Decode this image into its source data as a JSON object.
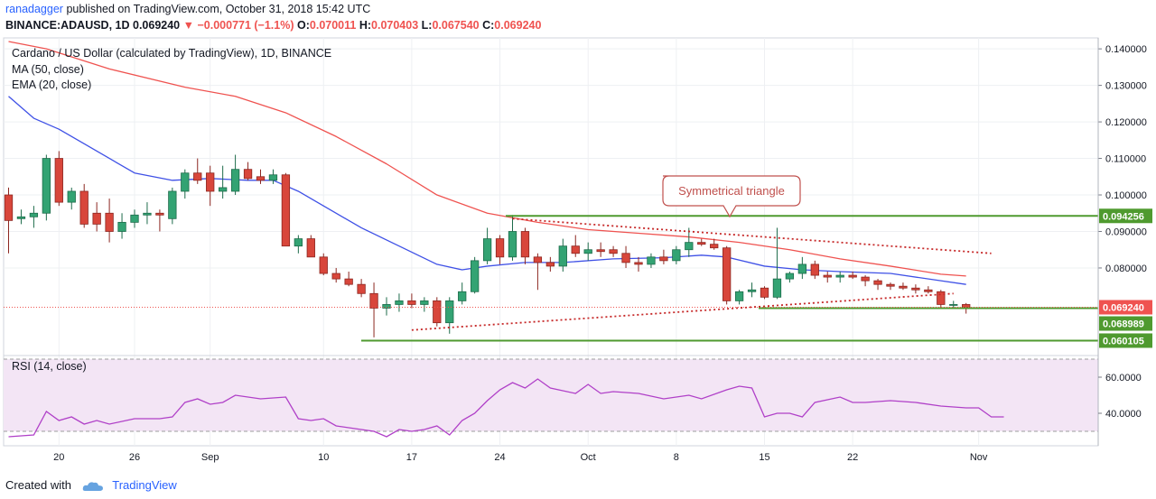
{
  "header": {
    "author": "ranadagger",
    "published": "published on TradingView.com, October 31, 2018 15:42 UTC",
    "symbol": "BINANCE:ADAUSD, 1D",
    "last": "0.069240",
    "arrow": "▼",
    "change": "−0.000771 (−1.1%)",
    "o_label": "O:",
    "o": "0.070011",
    "h_label": "H:",
    "h": "0.070403",
    "l_label": "L:",
    "l": "0.067540",
    "c_label": "C:",
    "c": "0.069240"
  },
  "legend": {
    "title": "Cardano / US Dollar (calculated by TradingView), 1D, BINANCE",
    "ma": "MA (50, close)",
    "ema": "EMA (20, close)",
    "rsi": "RSI (14, close)"
  },
  "annotation": {
    "text": "Symmetrical triangle"
  },
  "footer": {
    "created": "Created with",
    "brand": "TradingView"
  },
  "colors": {
    "up": "#26a69a",
    "down": "#ef5350",
    "ma": "#ef5350",
    "ema": "#3f51e6",
    "rsi_line": "#b040c8",
    "rsi_fill": "#f3e5f5",
    "level": "#4f9a2f",
    "grid": "#eef0f3",
    "price_tag": "#ef5350"
  },
  "chart_data": {
    "type": "candlestick",
    "price_axis": {
      "min": 0.058,
      "max": 0.143,
      "ticks": [
        0.14,
        0.13,
        0.12,
        0.11,
        0.1,
        0.09,
        0.08
      ],
      "tick_labels": [
        "0.140000",
        "0.130000",
        "0.120000",
        "0.110000",
        "0.100000",
        "0.090000",
        "0.080000"
      ]
    },
    "x_axis": {
      "first_day": 0,
      "labels": [
        {
          "day": 4,
          "text": "20"
        },
        {
          "day": 10,
          "text": "26"
        },
        {
          "day": 16,
          "text": "Sep"
        },
        {
          "day": 25,
          "text": "10"
        },
        {
          "day": 32,
          "text": "17"
        },
        {
          "day": 39,
          "text": "24"
        },
        {
          "day": 46,
          "text": "Oct"
        },
        {
          "day": 53,
          "text": "8"
        },
        {
          "day": 60,
          "text": "15"
        },
        {
          "day": 67,
          "text": "22"
        },
        {
          "day": 77,
          "text": "Nov"
        }
      ]
    },
    "candles": [
      {
        "o": 0.1,
        "h": 0.102,
        "l": 0.084,
        "c": 0.093
      },
      {
        "o": 0.0935,
        "h": 0.096,
        "l": 0.092,
        "c": 0.094
      },
      {
        "o": 0.094,
        "h": 0.097,
        "l": 0.091,
        "c": 0.095
      },
      {
        "o": 0.095,
        "h": 0.111,
        "l": 0.093,
        "c": 0.11
      },
      {
        "o": 0.11,
        "h": 0.112,
        "l": 0.097,
        "c": 0.098
      },
      {
        "o": 0.098,
        "h": 0.102,
        "l": 0.096,
        "c": 0.101
      },
      {
        "o": 0.101,
        "h": 0.103,
        "l": 0.091,
        "c": 0.092
      },
      {
        "o": 0.095,
        "h": 0.098,
        "l": 0.09,
        "c": 0.092
      },
      {
        "o": 0.095,
        "h": 0.099,
        "l": 0.087,
        "c": 0.09
      },
      {
        "o": 0.09,
        "h": 0.095,
        "l": 0.088,
        "c": 0.0925
      },
      {
        "o": 0.0925,
        "h": 0.096,
        "l": 0.091,
        "c": 0.0945
      },
      {
        "o": 0.0945,
        "h": 0.098,
        "l": 0.092,
        "c": 0.095
      },
      {
        "o": 0.095,
        "h": 0.096,
        "l": 0.09,
        "c": 0.0945
      },
      {
        "o": 0.0935,
        "h": 0.102,
        "l": 0.092,
        "c": 0.101
      },
      {
        "o": 0.101,
        "h": 0.107,
        "l": 0.099,
        "c": 0.106
      },
      {
        "o": 0.106,
        "h": 0.11,
        "l": 0.103,
        "c": 0.104
      },
      {
        "o": 0.106,
        "h": 0.108,
        "l": 0.097,
        "c": 0.101
      },
      {
        "o": 0.101,
        "h": 0.108,
        "l": 0.099,
        "c": 0.102
      },
      {
        "o": 0.101,
        "h": 0.111,
        "l": 0.1,
        "c": 0.107
      },
      {
        "o": 0.107,
        "h": 0.109,
        "l": 0.104,
        "c": 0.1045
      },
      {
        "o": 0.105,
        "h": 0.107,
        "l": 0.103,
        "c": 0.104
      },
      {
        "o": 0.104,
        "h": 0.107,
        "l": 0.103,
        "c": 0.1055
      },
      {
        "o": 0.1055,
        "h": 0.106,
        "l": 0.086,
        "c": 0.086
      },
      {
        "o": 0.086,
        "h": 0.089,
        "l": 0.084,
        "c": 0.088
      },
      {
        "o": 0.088,
        "h": 0.089,
        "l": 0.083,
        "c": 0.083
      },
      {
        "o": 0.083,
        "h": 0.084,
        "l": 0.078,
        "c": 0.0785
      },
      {
        "o": 0.0785,
        "h": 0.08,
        "l": 0.076,
        "c": 0.077
      },
      {
        "o": 0.077,
        "h": 0.079,
        "l": 0.075,
        "c": 0.0755
      },
      {
        "o": 0.0755,
        "h": 0.077,
        "l": 0.072,
        "c": 0.073
      },
      {
        "o": 0.073,
        "h": 0.076,
        "l": 0.061,
        "c": 0.069
      },
      {
        "o": 0.069,
        "h": 0.072,
        "l": 0.067,
        "c": 0.07
      },
      {
        "o": 0.07,
        "h": 0.073,
        "l": 0.068,
        "c": 0.071
      },
      {
        "o": 0.071,
        "h": 0.073,
        "l": 0.069,
        "c": 0.07
      },
      {
        "o": 0.07,
        "h": 0.072,
        "l": 0.068,
        "c": 0.071
      },
      {
        "o": 0.071,
        "h": 0.072,
        "l": 0.064,
        "c": 0.065
      },
      {
        "o": 0.065,
        "h": 0.072,
        "l": 0.062,
        "c": 0.071
      },
      {
        "o": 0.071,
        "h": 0.076,
        "l": 0.07,
        "c": 0.0735
      },
      {
        "o": 0.0735,
        "h": 0.083,
        "l": 0.073,
        "c": 0.082
      },
      {
        "o": 0.082,
        "h": 0.091,
        "l": 0.081,
        "c": 0.088
      },
      {
        "o": 0.088,
        "h": 0.089,
        "l": 0.081,
        "c": 0.083
      },
      {
        "o": 0.083,
        "h": 0.0945,
        "l": 0.082,
        "c": 0.09
      },
      {
        "o": 0.09,
        "h": 0.091,
        "l": 0.081,
        "c": 0.083
      },
      {
        "o": 0.083,
        "h": 0.084,
        "l": 0.074,
        "c": 0.0815
      },
      {
        "o": 0.0815,
        "h": 0.083,
        "l": 0.079,
        "c": 0.0805
      },
      {
        "o": 0.0805,
        "h": 0.088,
        "l": 0.079,
        "c": 0.086
      },
      {
        "o": 0.086,
        "h": 0.089,
        "l": 0.083,
        "c": 0.084
      },
      {
        "o": 0.084,
        "h": 0.087,
        "l": 0.082,
        "c": 0.085
      },
      {
        "o": 0.085,
        "h": 0.087,
        "l": 0.083,
        "c": 0.0845
      },
      {
        "o": 0.085,
        "h": 0.086,
        "l": 0.083,
        "c": 0.084
      },
      {
        "o": 0.084,
        "h": 0.086,
        "l": 0.08,
        "c": 0.0815
      },
      {
        "o": 0.0815,
        "h": 0.083,
        "l": 0.079,
        "c": 0.081
      },
      {
        "o": 0.081,
        "h": 0.084,
        "l": 0.08,
        "c": 0.083
      },
      {
        "o": 0.083,
        "h": 0.085,
        "l": 0.081,
        "c": 0.082
      },
      {
        "o": 0.082,
        "h": 0.086,
        "l": 0.081,
        "c": 0.085
      },
      {
        "o": 0.085,
        "h": 0.091,
        "l": 0.083,
        "c": 0.087
      },
      {
        "o": 0.087,
        "h": 0.088,
        "l": 0.086,
        "c": 0.0865
      },
      {
        "o": 0.0865,
        "h": 0.088,
        "l": 0.085,
        "c": 0.0855
      },
      {
        "o": 0.0855,
        "h": 0.086,
        "l": 0.07,
        "c": 0.071
      },
      {
        "o": 0.071,
        "h": 0.074,
        "l": 0.07,
        "c": 0.0735
      },
      {
        "o": 0.0735,
        "h": 0.076,
        "l": 0.072,
        "c": 0.074
      },
      {
        "o": 0.0745,
        "h": 0.075,
        "l": 0.0715,
        "c": 0.072
      },
      {
        "o": 0.072,
        "h": 0.091,
        "l": 0.0715,
        "c": 0.077
      },
      {
        "o": 0.077,
        "h": 0.079,
        "l": 0.076,
        "c": 0.0785
      },
      {
        "o": 0.0785,
        "h": 0.083,
        "l": 0.077,
        "c": 0.081
      },
      {
        "o": 0.081,
        "h": 0.082,
        "l": 0.077,
        "c": 0.078
      },
      {
        "o": 0.078,
        "h": 0.079,
        "l": 0.076,
        "c": 0.0775
      },
      {
        "o": 0.0775,
        "h": 0.079,
        "l": 0.076,
        "c": 0.078
      },
      {
        "o": 0.078,
        "h": 0.079,
        "l": 0.077,
        "c": 0.0775
      },
      {
        "o": 0.0775,
        "h": 0.078,
        "l": 0.075,
        "c": 0.0765
      },
      {
        "o": 0.0765,
        "h": 0.077,
        "l": 0.074,
        "c": 0.0755
      },
      {
        "o": 0.0755,
        "h": 0.076,
        "l": 0.074,
        "c": 0.075
      },
      {
        "o": 0.075,
        "h": 0.076,
        "l": 0.074,
        "c": 0.0745
      },
      {
        "o": 0.0745,
        "h": 0.0755,
        "l": 0.073,
        "c": 0.074
      },
      {
        "o": 0.074,
        "h": 0.075,
        "l": 0.073,
        "c": 0.0735
      },
      {
        "o": 0.0735,
        "h": 0.074,
        "l": 0.069,
        "c": 0.07
      },
      {
        "o": 0.07,
        "h": 0.071,
        "l": 0.069,
        "c": 0.07
      },
      {
        "o": 0.07,
        "h": 0.0704,
        "l": 0.0675,
        "c": 0.0692
      }
    ],
    "ma50": [
      [
        0,
        0.142
      ],
      [
        3,
        0.14
      ],
      [
        8,
        0.1345
      ],
      [
        14,
        0.1295
      ],
      [
        18,
        0.127
      ],
      [
        22,
        0.1225
      ],
      [
        26,
        0.116
      ],
      [
        30,
        0.1085
      ],
      [
        34,
        0.1
      ],
      [
        38,
        0.095
      ],
      [
        42,
        0.0925
      ],
      [
        46,
        0.0905
      ],
      [
        50,
        0.0895
      ],
      [
        54,
        0.0885
      ],
      [
        58,
        0.087
      ],
      [
        62,
        0.085
      ],
      [
        66,
        0.0825
      ],
      [
        70,
        0.0805
      ],
      [
        74,
        0.0783
      ],
      [
        76,
        0.0778
      ]
    ],
    "ema20": [
      [
        0,
        0.127
      ],
      [
        2,
        0.121
      ],
      [
        4,
        0.118
      ],
      [
        6,
        0.114
      ],
      [
        10,
        0.106
      ],
      [
        13,
        0.104
      ],
      [
        16,
        0.1045
      ],
      [
        19,
        0.104
      ],
      [
        21,
        0.104
      ],
      [
        23,
        0.101
      ],
      [
        25,
        0.097
      ],
      [
        28,
        0.091
      ],
      [
        31,
        0.086
      ],
      [
        34,
        0.081
      ],
      [
        36,
        0.0795
      ],
      [
        38,
        0.0805
      ],
      [
        41,
        0.0815
      ],
      [
        44,
        0.0815
      ],
      [
        48,
        0.0825
      ],
      [
        52,
        0.0828
      ],
      [
        55,
        0.0835
      ],
      [
        57,
        0.083
      ],
      [
        60,
        0.0805
      ],
      [
        63,
        0.0795
      ],
      [
        66,
        0.079
      ],
      [
        70,
        0.0785
      ],
      [
        74,
        0.0765
      ],
      [
        76,
        0.0755
      ]
    ],
    "annotations": {
      "resistance_level": 0.094256,
      "support_level": 0.060105,
      "current_price": 0.06924,
      "secondary_level": 0.068989,
      "triangle_upper": [
        [
          40,
          0.0935
        ],
        [
          78,
          0.084
        ]
      ],
      "triangle_lower": [
        [
          32,
          0.063
        ],
        [
          75,
          0.073
        ]
      ]
    },
    "rsi": {
      "min": 22,
      "max": 72,
      "ticks": [
        60,
        40
      ],
      "tick_labels": [
        "60.0000",
        "40.0000"
      ],
      "band": [
        70,
        30
      ],
      "values": [
        [
          0,
          27
        ],
        [
          2,
          28
        ],
        [
          3,
          41
        ],
        [
          4,
          36
        ],
        [
          5,
          38
        ],
        [
          6,
          34
        ],
        [
          7,
          36
        ],
        [
          8,
          34
        ],
        [
          10,
          37
        ],
        [
          12,
          37
        ],
        [
          13,
          38
        ],
        [
          14,
          46
        ],
        [
          15,
          48
        ],
        [
          16,
          45
        ],
        [
          17,
          46
        ],
        [
          18,
          50
        ],
        [
          20,
          48
        ],
        [
          22,
          49
        ],
        [
          23,
          37
        ],
        [
          24,
          36
        ],
        [
          25,
          37
        ],
        [
          26,
          33
        ],
        [
          28,
          31
        ],
        [
          29,
          30
        ],
        [
          30,
          27
        ],
        [
          31,
          31
        ],
        [
          32,
          30
        ],
        [
          33,
          31
        ],
        [
          34,
          33
        ],
        [
          35,
          28
        ],
        [
          36,
          36
        ],
        [
          37,
          40
        ],
        [
          38,
          47
        ],
        [
          39,
          53
        ],
        [
          40,
          57
        ],
        [
          41,
          54
        ],
        [
          42,
          59
        ],
        [
          43,
          54
        ],
        [
          45,
          51
        ],
        [
          46,
          56
        ],
        [
          47,
          51
        ],
        [
          48,
          52
        ],
        [
          50,
          51
        ],
        [
          52,
          48
        ],
        [
          54,
          50
        ],
        [
          55,
          48
        ],
        [
          57,
          53
        ],
        [
          58,
          55
        ],
        [
          59,
          54
        ],
        [
          60,
          38
        ],
        [
          61,
          40
        ],
        [
          62,
          40
        ],
        [
          63,
          38
        ],
        [
          64,
          46
        ],
        [
          66,
          49
        ],
        [
          67,
          46
        ],
        [
          68,
          46
        ],
        [
          70,
          47
        ],
        [
          72,
          46
        ],
        [
          74,
          44
        ],
        [
          76,
          43
        ],
        [
          77,
          43
        ],
        [
          78,
          38
        ],
        [
          79,
          38
        ]
      ]
    }
  }
}
